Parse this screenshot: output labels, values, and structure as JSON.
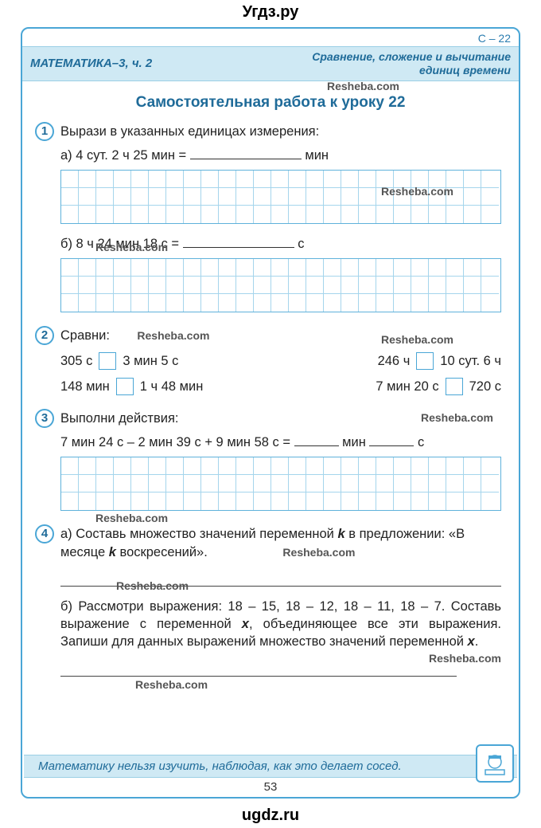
{
  "site_top": "Угдз.ру",
  "site_bottom": "ugdz.ru",
  "corner": "С – 22",
  "header_left": "МАТЕМАТИКА–3, ч. 2",
  "header_right_l1": "Сравнение, сложение и вычитание",
  "header_right_l2": "единиц времени",
  "title": "Самостоятельная работа к уроку 22",
  "watermark": "Resheba.com",
  "task1": {
    "num": "1",
    "text": "Вырази в указанных единицах измерения:",
    "a": "а) 4 сут. 2 ч 25 мин =",
    "a_unit": "мин",
    "b": "б) 8 ч 24 мин 18 с =",
    "b_unit": "с"
  },
  "task2": {
    "num": "2",
    "text": "Сравни:",
    "rows": [
      {
        "l": "305 с",
        "r": "3 мин 5 с",
        "l2": "246 ч",
        "r2": "10 сут. 6 ч"
      },
      {
        "l": "148 мин",
        "r": "1 ч 48 мин",
        "l2": "7 мин 20 с",
        "r2": "720 с"
      }
    ]
  },
  "task3": {
    "num": "3",
    "text": "Выполни действия:",
    "expr": "7 мин 24 с – 2 мин 39 с + 9 мин 58 с =",
    "u1": "мин",
    "u2": "с"
  },
  "task4": {
    "num": "4",
    "a1": "а) Составь множество значений переменной ",
    "a_k": "k",
    "a2": " в предложении:",
    "a3": "«В месяце ",
    "a4": " воскресений».",
    "b": "б) Рассмотри выражения: 18 – 15, 18 – 12, 18 – 11, 18 – 7. Составь выражение с переменной ",
    "b_x": "x",
    "b2": ", объединяющее все эти выражения. Запиши для данных выражений множество значений переменной ",
    "b3": "."
  },
  "quote": "Математику нельзя изучить, наблюдая, как это делает сосед.",
  "page_number": "53",
  "style": {
    "accent": "#4aa6d6",
    "band_bg": "#cfe9f4",
    "grid_cols": 25,
    "grid_rows": 3
  }
}
